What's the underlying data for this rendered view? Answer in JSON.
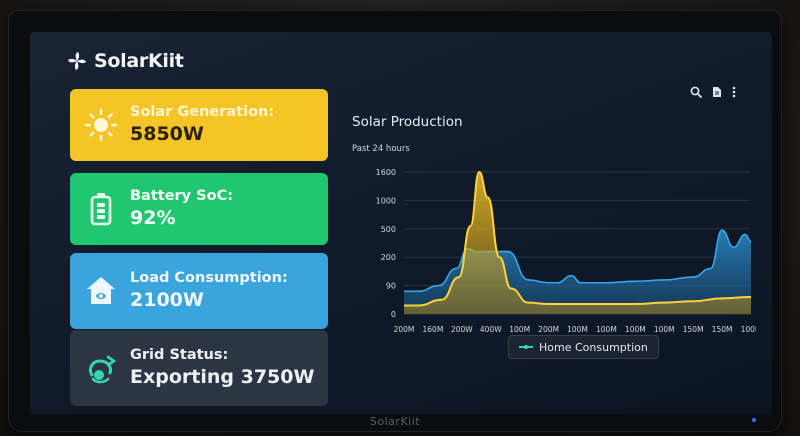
{
  "app": {
    "name": "SolarKiit",
    "bezel_brand": "SolarKiit"
  },
  "cards": [
    {
      "label": "Solar Generation:",
      "value": "5850W",
      "icon": "sun-icon"
    },
    {
      "label": "Battery SoC:",
      "value": "92%",
      "icon": "battery-icon"
    },
    {
      "label": "Load Consumption:",
      "value": "2100W",
      "icon": "house-icon"
    },
    {
      "label": "Grid Status:",
      "value": "Exporting 3750W",
      "icon": "grid-icon"
    }
  ],
  "toolbar": {
    "icons": [
      "search-icon",
      "document-icon",
      "more-icon"
    ]
  },
  "chart": {
    "title": "Solar Production",
    "subtitle": "Past 24 hours",
    "legend": "Home Consumption"
  },
  "chart_data": {
    "type": "area",
    "x": [
      "200M",
      "160M",
      "200W",
      "400W",
      "100M",
      "200M",
      "100M",
      "100M",
      "100M",
      "100M",
      "150M",
      "150M",
      "100M"
    ],
    "y_ticks": [
      "1600",
      "1000",
      "500",
      "200",
      "90",
      "0"
    ],
    "series": [
      {
        "name": "Solar",
        "color": "#f5c528",
        "points": [
          [
            0,
            0.3
          ],
          [
            0.5,
            0.3
          ],
          [
            1.3,
            0.5
          ],
          [
            1.9,
            1.3
          ],
          [
            2.3,
            3.1
          ],
          [
            2.6,
            5.0
          ],
          [
            2.9,
            4.1
          ],
          [
            3.3,
            2.0
          ],
          [
            3.7,
            0.9
          ],
          [
            4.3,
            0.4
          ],
          [
            5,
            0.35
          ],
          [
            6,
            0.35
          ],
          [
            7,
            0.35
          ],
          [
            8,
            0.35
          ],
          [
            9,
            0.4
          ],
          [
            10,
            0.45
          ],
          [
            11,
            0.55
          ],
          [
            12,
            0.6
          ]
        ]
      },
      {
        "name": "Home Consumption",
        "color": "#2e86c1",
        "points": [
          [
            0,
            0.8
          ],
          [
            0.5,
            0.8
          ],
          [
            1.2,
            1.0
          ],
          [
            1.8,
            1.6
          ],
          [
            2.2,
            2.3
          ],
          [
            2.5,
            2.2
          ],
          [
            3.0,
            2.2
          ],
          [
            3.6,
            2.2
          ],
          [
            4.3,
            1.2
          ],
          [
            5,
            1.1
          ],
          [
            5.3,
            1.1
          ],
          [
            5.8,
            1.35
          ],
          [
            6.1,
            1.1
          ],
          [
            7,
            1.1
          ],
          [
            8,
            1.15
          ],
          [
            9,
            1.2
          ],
          [
            10,
            1.3
          ],
          [
            10.6,
            1.6
          ],
          [
            11.0,
            2.95
          ],
          [
            11.4,
            2.35
          ],
          [
            11.8,
            2.8
          ],
          [
            12,
            2.55
          ]
        ]
      }
    ]
  }
}
